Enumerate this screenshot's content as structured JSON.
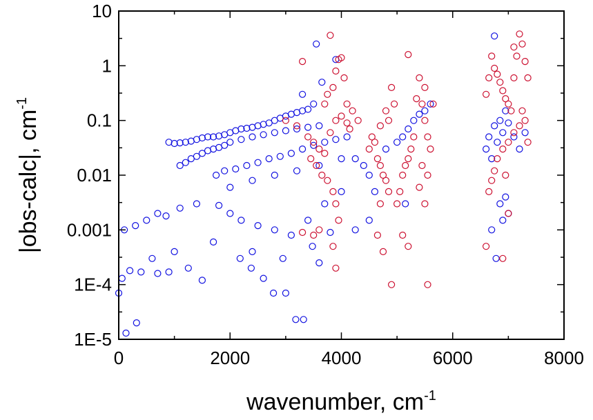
{
  "chart_data": {
    "type": "scatter",
    "title": "",
    "xlabel": "wavenumber, cm",
    "xlabel_sup": "-1",
    "ylabel": "|obs-calc|, cm",
    "ylabel_sup": "-1",
    "xlim": [
      0,
      8000
    ],
    "ylim": [
      1e-05,
      10
    ],
    "yscale": "log",
    "grid": false,
    "legend": "none",
    "x_ticks": [
      0,
      2000,
      4000,
      6000,
      8000
    ],
    "x_tick_labels": [
      "0",
      "2000",
      "4000",
      "6000",
      "8000"
    ],
    "y_ticks": [
      1e-05,
      0.0001,
      0.001,
      0.01,
      0.1,
      1,
      10
    ],
    "y_tick_labels": [
      "1E-5",
      "1E-4",
      "0.001",
      "0.01",
      "0.1",
      "1",
      "10"
    ],
    "series": [
      {
        "color": "#1010e0",
        "marker": "open-circle",
        "values": [
          [
            0,
            7e-05
          ],
          [
            130,
            1.3e-05
          ],
          [
            320,
            2e-05
          ],
          [
            60,
            0.00013
          ],
          [
            200,
            0.00018
          ],
          [
            400,
            0.00017
          ],
          [
            700,
            0.00016
          ],
          [
            900,
            0.00017
          ],
          [
            1250,
            0.0002
          ],
          [
            1500,
            0.00012
          ],
          [
            2180,
            0.0003
          ],
          [
            2380,
            0.0002
          ],
          [
            2600,
            0.00013
          ],
          [
            2780,
            7e-05
          ],
          [
            3000,
            7e-05
          ],
          [
            3180,
            2.3e-05
          ],
          [
            3320,
            2.3e-05
          ],
          [
            3480,
            0.0005
          ],
          [
            2950,
            0.0003
          ],
          [
            3600,
            0.00025
          ],
          [
            600,
            0.0003
          ],
          [
            1000,
            0.0004
          ],
          [
            1700,
            0.0006
          ],
          [
            2400,
            0.0004
          ],
          [
            3800,
            0.0009
          ],
          [
            100,
            0.001
          ],
          [
            300,
            0.0012
          ],
          [
            500,
            0.0015
          ],
          [
            700,
            0.002
          ],
          [
            850,
            0.0018
          ],
          [
            1100,
            0.0025
          ],
          [
            1400,
            0.003
          ],
          [
            1800,
            0.0028
          ],
          [
            2000,
            0.002
          ],
          [
            2200,
            0.0015
          ],
          [
            2500,
            0.0012
          ],
          [
            2800,
            0.001
          ],
          [
            3100,
            0.0008
          ],
          [
            3400,
            0.0015
          ],
          [
            3700,
            0.003
          ],
          [
            4000,
            0.005
          ],
          [
            900,
            0.04
          ],
          [
            1000,
            0.038
          ],
          [
            1100,
            0.039
          ],
          [
            1200,
            0.04
          ],
          [
            1300,
            0.042
          ],
          [
            1400,
            0.045
          ],
          [
            1500,
            0.048
          ],
          [
            1600,
            0.05
          ],
          [
            1700,
            0.05
          ],
          [
            1800,
            0.052
          ],
          [
            1900,
            0.055
          ],
          [
            2000,
            0.06
          ],
          [
            2100,
            0.065
          ],
          [
            2200,
            0.07
          ],
          [
            2300,
            0.072
          ],
          [
            2400,
            0.075
          ],
          [
            2500,
            0.08
          ],
          [
            2600,
            0.085
          ],
          [
            2700,
            0.09
          ],
          [
            2800,
            0.1
          ],
          [
            2900,
            0.11
          ],
          [
            3000,
            0.12
          ],
          [
            3100,
            0.13
          ],
          [
            3200,
            0.14
          ],
          [
            3300,
            0.15
          ],
          [
            3400,
            0.16
          ],
          [
            1100,
            0.015
          ],
          [
            1200,
            0.017
          ],
          [
            1300,
            0.02
          ],
          [
            1400,
            0.022
          ],
          [
            1500,
            0.025
          ],
          [
            1600,
            0.028
          ],
          [
            1700,
            0.03
          ],
          [
            1800,
            0.032
          ],
          [
            1900,
            0.035
          ],
          [
            2000,
            0.04
          ],
          [
            2200,
            0.045
          ],
          [
            2400,
            0.05
          ],
          [
            2600,
            0.055
          ],
          [
            2800,
            0.06
          ],
          [
            3000,
            0.065
          ],
          [
            3200,
            0.07
          ],
          [
            3400,
            0.075
          ],
          [
            3600,
            0.08
          ],
          [
            1750,
            0.01
          ],
          [
            1900,
            0.012
          ],
          [
            2100,
            0.013
          ],
          [
            2300,
            0.015
          ],
          [
            2500,
            0.017
          ],
          [
            2700,
            0.02
          ],
          [
            2900,
            0.022
          ],
          [
            3100,
            0.025
          ],
          [
            3300,
            0.03
          ],
          [
            3500,
            0.035
          ],
          [
            3700,
            0.04
          ],
          [
            3900,
            0.045
          ],
          [
            4100,
            0.05
          ],
          [
            2000,
            0.006
          ],
          [
            2400,
            0.008
          ],
          [
            2800,
            0.01
          ],
          [
            3200,
            0.012
          ],
          [
            3600,
            0.015
          ],
          [
            4000,
            0.02
          ],
          [
            3300,
            0.3
          ],
          [
            3500,
            0.2
          ],
          [
            3650,
            0.5
          ],
          [
            3550,
            2.5
          ],
          [
            3900,
            1.3
          ],
          [
            4250,
            0.02
          ],
          [
            4400,
            0.015
          ],
          [
            4500,
            0.01
          ],
          [
            4600,
            0.005
          ],
          [
            4800,
            0.03
          ],
          [
            5000,
            0.04
          ],
          [
            5100,
            0.05
          ],
          [
            5200,
            0.07
          ],
          [
            5300,
            0.1
          ],
          [
            5400,
            0.13
          ],
          [
            5500,
            0.15
          ],
          [
            5600,
            0.2
          ],
          [
            4250,
            0.001
          ],
          [
            4500,
            0.0015
          ],
          [
            5150,
            0.003
          ],
          [
            6600,
            0.03
          ],
          [
            6650,
            0.05
          ],
          [
            6700,
            0.02
          ],
          [
            6750,
            0.08
          ],
          [
            6800,
            0.04
          ],
          [
            6850,
            0.1
          ],
          [
            6900,
            0.06
          ],
          [
            6950,
            0.15
          ],
          [
            7000,
            0.09
          ],
          [
            7100,
            0.05
          ],
          [
            7200,
            0.03
          ],
          [
            7300,
            0.06
          ],
          [
            6750,
            3.5
          ],
          [
            6780,
            0.0003
          ],
          [
            6700,
            0.001
          ],
          [
            6850,
            0.003
          ],
          [
            6900,
            0.0015
          ],
          [
            6950,
            0.004
          ],
          [
            7000,
            0.002
          ]
        ]
      },
      {
        "color": "#cc1030",
        "marker": "open-circle",
        "values": [
          [
            3800,
            3.6
          ],
          [
            3300,
            1.2
          ],
          [
            3950,
            1.3
          ],
          [
            4000,
            1.4
          ],
          [
            3900,
            0.8
          ],
          [
            4050,
            0.6
          ],
          [
            3850,
            0.4
          ],
          [
            3750,
            0.3
          ],
          [
            3700,
            0.2
          ],
          [
            4100,
            0.2
          ],
          [
            4200,
            0.15
          ],
          [
            4300,
            0.1
          ],
          [
            3000,
            0.1
          ],
          [
            3200,
            0.08
          ],
          [
            3400,
            0.05
          ],
          [
            3500,
            0.04
          ],
          [
            3600,
            0.03
          ],
          [
            3700,
            0.025
          ],
          [
            3800,
            0.06
          ],
          [
            3900,
            0.1
          ],
          [
            4000,
            0.12
          ],
          [
            4100,
            0.09
          ],
          [
            4150,
            0.07
          ],
          [
            3450,
            0.02
          ],
          [
            3550,
            0.015
          ],
          [
            3650,
            0.01
          ],
          [
            3750,
            0.008
          ],
          [
            3850,
            0.005
          ],
          [
            3900,
            0.003
          ],
          [
            3950,
            0.0015
          ],
          [
            3600,
            0.001
          ],
          [
            3500,
            0.0008
          ],
          [
            3850,
            0.0005
          ],
          [
            3900,
            0.0002
          ],
          [
            3300,
            0.0009
          ],
          [
            4500,
            0.03
          ],
          [
            4550,
            0.05
          ],
          [
            4600,
            0.04
          ],
          [
            4650,
            0.02
          ],
          [
            4700,
            0.015
          ],
          [
            4750,
            0.01
          ],
          [
            4800,
            0.008
          ],
          [
            4850,
            0.005
          ],
          [
            4700,
            0.003
          ],
          [
            4650,
            0.0008
          ],
          [
            4750,
            0.0004
          ],
          [
            4900,
            0.4
          ],
          [
            4950,
            0.2
          ],
          [
            4800,
            0.15
          ],
          [
            4850,
            0.1
          ],
          [
            4700,
            0.08
          ],
          [
            4900,
            0.0001
          ],
          [
            5000,
            0.003
          ],
          [
            5050,
            0.005
          ],
          [
            5100,
            0.01
          ],
          [
            5150,
            0.015
          ],
          [
            5200,
            0.02
          ],
          [
            5250,
            0.03
          ],
          [
            5300,
            0.05
          ],
          [
            5100,
            0.0008
          ],
          [
            5200,
            0.0005
          ],
          [
            5200,
            1.6
          ],
          [
            5400,
            0.6
          ],
          [
            5500,
            0.4
          ],
          [
            5450,
            0.2
          ],
          [
            5350,
            0.25
          ],
          [
            5500,
            0.1
          ],
          [
            5550,
            0.05
          ],
          [
            5600,
            0.03
          ],
          [
            5450,
            0.015
          ],
          [
            5550,
            0.01
          ],
          [
            5400,
            0.006
          ],
          [
            5500,
            0.003
          ],
          [
            5550,
            0.0001
          ],
          [
            5650,
            0.2
          ],
          [
            6600,
            0.3
          ],
          [
            6650,
            0.6
          ],
          [
            6700,
            1.5
          ],
          [
            6750,
            0.9
          ],
          [
            6800,
            0.7
          ],
          [
            6850,
            0.5
          ],
          [
            6900,
            0.35
          ],
          [
            6950,
            0.25
          ],
          [
            7000,
            0.2
          ],
          [
            7050,
            0.15
          ],
          [
            7100,
            0.6
          ],
          [
            7150,
            1.5
          ],
          [
            7200,
            3.8
          ],
          [
            7250,
            2.5
          ],
          [
            7300,
            1.2
          ],
          [
            7350,
            0.6
          ],
          [
            7100,
            2.2
          ],
          [
            6650,
            0.005
          ],
          [
            6700,
            0.008
          ],
          [
            6750,
            0.012
          ],
          [
            6800,
            0.02
          ],
          [
            6900,
            0.03
          ],
          [
            7000,
            0.04
          ],
          [
            7100,
            0.06
          ],
          [
            7200,
            0.08
          ],
          [
            7300,
            0.1
          ],
          [
            7350,
            0.04
          ],
          [
            6950,
            0.01
          ],
          [
            7000,
            0.002
          ],
          [
            6600,
            0.0005
          ],
          [
            6900,
            0.0003
          ],
          [
            7250,
            0.15
          ]
        ]
      }
    ]
  }
}
